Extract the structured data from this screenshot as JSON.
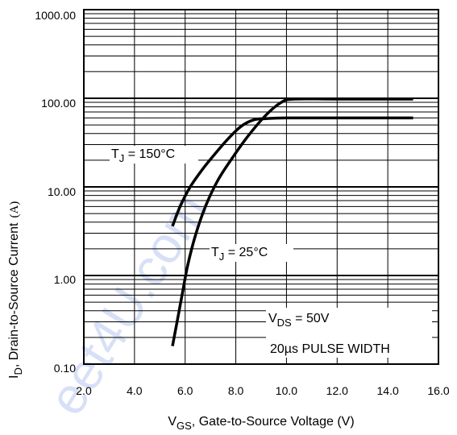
{
  "watermark": "eet4U.com",
  "chart_data": {
    "type": "line",
    "x_scale": "linear",
    "y_scale": "log",
    "xlim": [
      2.0,
      16.0
    ],
    "ylim": [
      0.1,
      1000
    ],
    "grid": true,
    "xlabel": {
      "main": "V",
      "sub": "GS",
      "rest": ", Gate-to-Source Voltage (V)"
    },
    "ylabel": {
      "main": "I",
      "sub": "D",
      "rest": ", Drain-to-Source Current",
      "unit": "(A)"
    },
    "x_ticks": [
      {
        "value": 2.0,
        "label": "2.0"
      },
      {
        "value": 4.0,
        "label": "4.0"
      },
      {
        "value": 6.0,
        "label": "6.0"
      },
      {
        "value": 8.0,
        "label": "8.0"
      },
      {
        "value": 10.0,
        "label": "10.0"
      },
      {
        "value": 12.0,
        "label": "12.0"
      },
      {
        "value": 14.0,
        "label": "14.0"
      },
      {
        "value": 16.0,
        "label": "16.0"
      }
    ],
    "y_ticks": [
      {
        "value": 0.1,
        "label": "0.10"
      },
      {
        "value": 1,
        "label": "1.00"
      },
      {
        "value": 10,
        "label": "10.00"
      },
      {
        "value": 100,
        "label": "100.00"
      },
      {
        "value": 1000,
        "label": "1000.00"
      }
    ],
    "series": [
      {
        "label_main": "T",
        "label_sub": "J",
        "label_rest": " = 150°C",
        "points": [
          [
            5.5,
            3.6
          ],
          [
            5.8,
            6.0
          ],
          [
            6.2,
            10
          ],
          [
            6.7,
            16
          ],
          [
            7.2,
            24
          ],
          [
            7.7,
            35
          ],
          [
            8.2,
            48
          ],
          [
            8.7,
            57
          ],
          [
            9.2,
            59
          ],
          [
            10,
            60
          ],
          [
            12,
            60
          ],
          [
            15,
            60
          ]
        ]
      },
      {
        "label_main": "T",
        "label_sub": "J",
        "label_rest": " = 25°C",
        "points": [
          [
            5.5,
            0.16
          ],
          [
            5.7,
            0.32
          ],
          [
            5.9,
            0.65
          ],
          [
            6.1,
            1.3
          ],
          [
            6.4,
            2.8
          ],
          [
            6.8,
            6.0
          ],
          [
            7.3,
            12
          ],
          [
            7.9,
            22
          ],
          [
            8.5,
            38
          ],
          [
            9.2,
            65
          ],
          [
            9.8,
            90
          ],
          [
            10.3,
            98
          ],
          [
            12,
            98
          ],
          [
            15,
            98
          ]
        ]
      }
    ],
    "annotations": [
      {
        "main": "V",
        "sub": "DS",
        "rest": " = 50V"
      },
      {
        "text": "20µs PULSE WIDTH"
      }
    ]
  }
}
